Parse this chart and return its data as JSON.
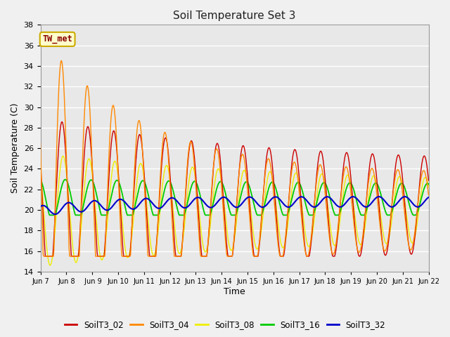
{
  "title": "Soil Temperature Set 3",
  "xlabel": "Time",
  "ylabel": "Soil Temperature (C)",
  "ylim": [
    14,
    38
  ],
  "yticks": [
    14,
    16,
    18,
    20,
    22,
    24,
    26,
    28,
    30,
    32,
    34,
    36,
    38
  ],
  "x_labels": [
    "Jun 7",
    "Jun 8",
    " Jun 9",
    "Jun 10",
    "Jun 11",
    "Jun 12",
    "Jun 13",
    "Jun 14",
    "Jun 15",
    "Jun 16",
    "Jun 17",
    "Jun 18",
    "Jun 19",
    "Jun 20",
    "Jun 21",
    "Jun 22"
  ],
  "colors": {
    "SoilT3_02": "#cc0000",
    "SoilT3_04": "#ff8800",
    "SoilT3_08": "#eeee00",
    "SoilT3_16": "#00cc00",
    "SoilT3_32": "#0000cc"
  },
  "annotation_text": "TW_met",
  "annotation_color": "#880000",
  "annotation_bg": "#ffffcc",
  "annotation_edge": "#ccaa00",
  "plot_bg": "#e8e8e8",
  "fig_bg": "#f0f0f0",
  "grid_color": "#ffffff",
  "legend_entries": [
    "SoilT3_02",
    "SoilT3_04",
    "SoilT3_08",
    "SoilT3_16",
    "SoilT3_32"
  ]
}
